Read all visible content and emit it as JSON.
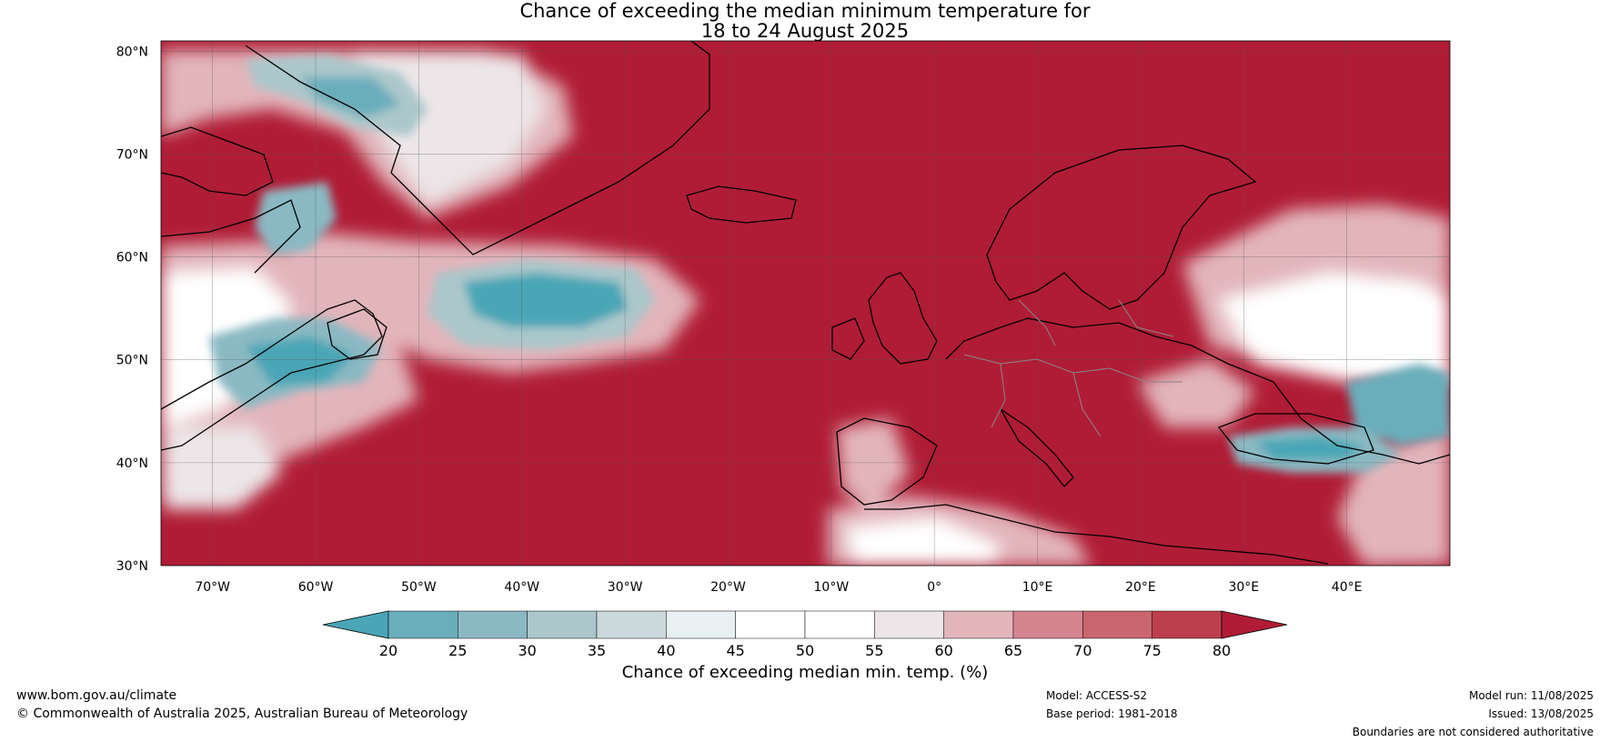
{
  "title_line1": "Chance of exceeding the median minimum temperature for",
  "title_line2": "18 to 24 August 2025",
  "axes": {
    "lat_labels": [
      "80°N",
      "70°N",
      "60°N",
      "50°N",
      "40°N",
      "30°N"
    ],
    "lat_values": [
      80,
      70,
      60,
      50,
      40,
      30
    ],
    "lon_labels": [
      "70°W",
      "60°W",
      "50°W",
      "40°W",
      "30°W",
      "20°W",
      "10°W",
      "0°",
      "10°E",
      "20°E",
      "30°E",
      "40°E"
    ],
    "lon_values": [
      -70,
      -60,
      -50,
      -40,
      -30,
      -20,
      -10,
      0,
      10,
      20,
      30,
      40
    ],
    "lon_range": [
      -75,
      50
    ],
    "lat_range": [
      30,
      81
    ]
  },
  "colorbar": {
    "ticks": [
      "20",
      "25",
      "30",
      "35",
      "40",
      "45",
      "50",
      "55",
      "60",
      "65",
      "70",
      "75",
      "80"
    ],
    "label": "Chance of exceeding median min. temp. (%)",
    "colors": [
      "#4aa6b6",
      "#6aaebb",
      "#8ab9c3",
      "#abc7cb",
      "#cbd8dc",
      "#e9f0f2",
      "#ffffff",
      "#ffffff",
      "#ece6e8",
      "#e2b5bb",
      "#d4858f",
      "#c9666f",
      "#bd3f4e",
      "#b01c35"
    ],
    "low_color": "#4aa6b6",
    "high_color": "#b01c35"
  },
  "footer": {
    "site": "www.bom.gov.au/climate",
    "copyright": "© Commonwealth of Australia 2025, Australian Bureau of Meteorology",
    "model": "Model: ACCESS-S2",
    "base_period": "Base period: 1981-2018",
    "model_run": "Model run: 11/08/2025",
    "issued": "Issued: 13/08/2025",
    "disclaimer": "Boundaries are not considered authoritative"
  }
}
